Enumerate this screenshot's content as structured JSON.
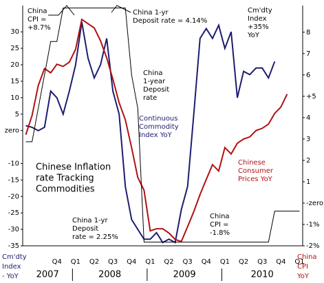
{
  "chart_data": {
    "type": "line",
    "categories": [
      null,
      null,
      null,
      null,
      null,
      "Q4",
      null,
      null,
      "Q1",
      null,
      null,
      "Q2",
      null,
      null,
      "Q3",
      null,
      null,
      "Q4",
      null,
      null,
      "Q1",
      null,
      null,
      "Q2",
      null,
      null,
      "Q3",
      null,
      null,
      "Q4",
      null,
      null,
      "Q1",
      null,
      null,
      "Q2",
      null,
      null,
      "Q3",
      null,
      null,
      "Q4",
      null,
      null,
      "Q1"
    ],
    "years": [
      "2007",
      "2008",
      "2009",
      "2010"
    ],
    "series": [
      {
        "name": "Continuous Commodity Index YoY",
        "color": "#1c1c6e",
        "axis": "y",
        "values": [
          1.5,
          1,
          0,
          1,
          12,
          10,
          5,
          12,
          20,
          33,
          22,
          16,
          20,
          28,
          12,
          5,
          -17,
          -27,
          -30,
          -33,
          -33,
          -31,
          -34,
          -33,
          -34,
          -24,
          -17,
          5,
          28,
          31,
          28,
          32,
          25,
          30,
          10,
          18,
          17,
          19,
          19,
          16,
          21,
          null,
          null,
          null,
          null
        ]
      },
      {
        "name": "Chinese Consumer Prices YoY",
        "color": "#b01010",
        "axis": "y2",
        "values": [
          3.2,
          4.1,
          5.5,
          6.3,
          6.1,
          6.5,
          6.4,
          6.6,
          7.2,
          8.6,
          8.4,
          8.2,
          7.6,
          6.8,
          5.8,
          4.7,
          3.9,
          2.6,
          1.2,
          0.6,
          -1.3,
          -1.2,
          -1.2,
          -1.4,
          -1.7,
          -1.8,
          -1.1,
          -0.4,
          0.4,
          1.1,
          1.8,
          1.5,
          2.6,
          2.3,
          2.8,
          3.0,
          3.1,
          3.4,
          3.5,
          3.7,
          4.2,
          4.5,
          5.1,
          null,
          null
        ]
      },
      {
        "name": "China 1-year Deposit rate",
        "color": "#000000",
        "axis": "y3",
        "values": [
          3.06,
          3.06,
          3.33,
          3.6,
          3.87,
          3.87,
          4.14,
          4.14,
          4.14,
          4.14,
          4.14,
          4.14,
          4.14,
          4.14,
          4.14,
          4.14,
          4.14,
          3.6,
          3.33,
          2.25,
          2.25,
          2.25,
          2.25,
          2.25,
          2.25,
          2.25,
          2.25,
          2.25,
          2.25,
          2.25,
          2.25,
          2.25,
          2.25,
          2.25,
          2.25,
          2.25,
          2.25,
          2.25,
          2.25,
          2.25,
          2.5,
          2.5,
          2.5,
          2.5,
          2.5
        ]
      }
    ],
    "ylim": [
      -35,
      38
    ],
    "yticks": [
      30,
      25,
      20,
      15,
      10,
      5,
      {
        "value": 0,
        "label": "zero"
      },
      -10,
      -15,
      -20,
      -25,
      -30,
      -35
    ],
    "y2lim": [
      -2,
      9.25
    ],
    "y2ticks": [
      8,
      7,
      6,
      {
        "value": 5,
        "label": "+5"
      },
      4,
      3,
      2,
      1,
      {
        "value": 0,
        "label": "-zero"
      },
      {
        "value": -1,
        "label": "-1%"
      },
      {
        "value": -2,
        "label": "-2%"
      }
    ],
    "y3lim": [
      2.22,
      4.16
    ],
    "ylabel": [
      "Cm'dty",
      "Index",
      "- YoY"
    ],
    "y2label": [
      "China",
      "CPI",
      "YoY"
    ],
    "annotations": [
      {
        "lines": [
          "China",
          "CPI =",
          "+8.7%"
        ],
        "color": "#000000"
      },
      {
        "lines": [
          "China 1-yr",
          "Deposit rate =  4.14%"
        ],
        "color": "#000000"
      },
      {
        "lines": [
          "Cm'dty",
          "Index",
          "+35%",
          "YoY"
        ],
        "color": "#000000"
      },
      {
        "lines": [
          "China",
          "1-year",
          "Deposit",
          "rate"
        ],
        "color": "#000000"
      },
      {
        "lines": [
          "Continuous",
          "Commodity",
          "Index YoY"
        ],
        "color": "#1c1c6e"
      },
      {
        "lines": [
          "Chinese Inflation",
          "rate Tracking",
          "Commodities"
        ],
        "color": "#000000"
      },
      {
        "lines": [
          "Chinese",
          "Consumer",
          "Prices YoY"
        ],
        "color": "#b01010"
      },
      {
        "lines": [
          "China 1-yr",
          "Deposit",
          "rate = 2.25%"
        ],
        "color": "#000000"
      },
      {
        "lines": [
          "China",
          "CPI =",
          "-1.8%"
        ],
        "color": "#000000"
      }
    ]
  }
}
